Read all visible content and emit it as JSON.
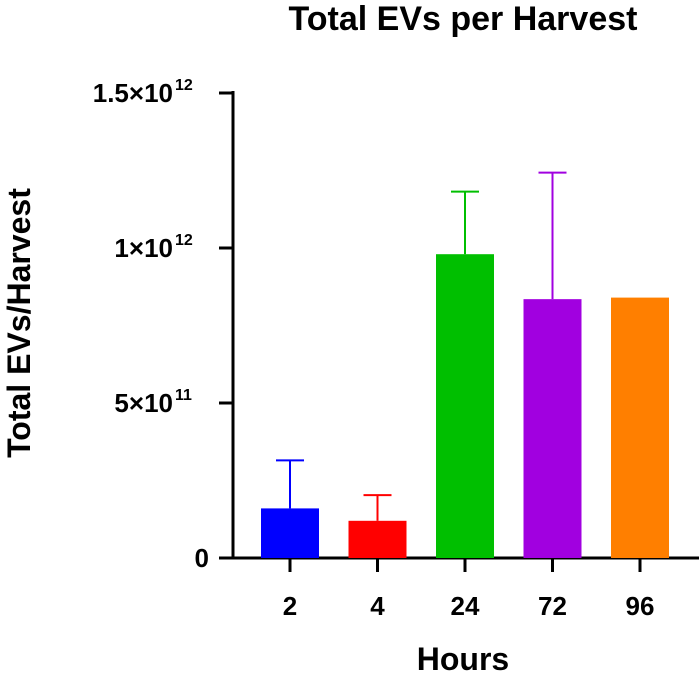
{
  "chart_data": {
    "type": "bar",
    "title": "Total EVs per Harvest",
    "xlabel": "Hours",
    "ylabel": "Total EVs/Harvest",
    "categories": [
      "2",
      "4",
      "24",
      "72",
      "96"
    ],
    "values": [
      160000000000.0,
      120000000000.0,
      980000000000.0,
      835000000000.0,
      840000000000.0
    ],
    "error_upper": [
      315000000000.0,
      203000000000.0,
      1182000000000.0,
      1243000000000.0,
      null
    ],
    "colors": [
      "#0000ff",
      "#ff0000",
      "#00bf00",
      "#a100e0",
      "#ff7f00"
    ],
    "ylim": [
      0,
      1500000000000.0
    ],
    "y_ticks": [
      {
        "value": 0,
        "base": "0",
        "exp": ""
      },
      {
        "value": 500000000000.0,
        "base": "5×10",
        "exp": "11"
      },
      {
        "value": 1000000000000.0,
        "base": "1×10",
        "exp": "12"
      },
      {
        "value": 1500000000000.0,
        "base": "1.5×10",
        "exp": "12"
      }
    ],
    "grid": false,
    "legend": "none"
  }
}
